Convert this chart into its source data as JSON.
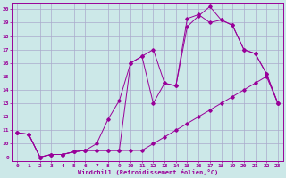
{
  "xlabel": "Windchill (Refroidissement éolien,°C)",
  "bg_color": "#cce8e8",
  "line_color": "#990099",
  "grid_color": "#aaaacc",
  "yticks": [
    9,
    10,
    11,
    12,
    13,
    14,
    15,
    16,
    17,
    18,
    19,
    20
  ],
  "xticks": [
    0,
    1,
    2,
    3,
    4,
    5,
    6,
    7,
    8,
    9,
    10,
    11,
    12,
    13,
    14,
    15,
    16,
    17,
    18,
    19,
    20,
    21,
    22,
    23
  ],
  "line1_x": [
    0,
    1,
    2,
    3,
    4,
    5,
    6,
    7,
    8,
    9,
    10,
    11,
    12,
    13,
    14,
    15,
    16,
    17,
    18,
    19,
    20,
    21,
    22,
    23
  ],
  "line1_y": [
    10.8,
    10.7,
    9.0,
    9.2,
    9.2,
    9.4,
    9.5,
    9.5,
    9.5,
    9.5,
    9.5,
    9.5,
    10.0,
    10.5,
    11.0,
    11.5,
    12.0,
    12.5,
    13.0,
    13.5,
    14.0,
    14.5,
    15.0,
    13.0
  ],
  "line2_x": [
    0,
    1,
    2,
    3,
    4,
    5,
    6,
    7,
    8,
    9,
    10,
    11,
    12,
    13,
    14,
    15,
    16,
    17,
    18,
    19,
    20,
    21,
    22,
    23
  ],
  "line2_y": [
    10.8,
    10.7,
    9.0,
    9.2,
    9.2,
    9.4,
    9.5,
    10.0,
    11.8,
    13.2,
    16.0,
    16.5,
    17.0,
    14.5,
    14.3,
    18.7,
    19.5,
    20.2,
    19.2,
    18.8,
    17.0,
    16.7,
    15.2,
    13.0
  ],
  "line3_x": [
    0,
    1,
    2,
    3,
    4,
    5,
    6,
    7,
    8,
    9,
    10,
    11,
    12,
    13,
    14,
    15,
    16,
    17,
    18,
    19,
    20,
    21,
    22,
    23
  ],
  "line3_y": [
    10.8,
    10.7,
    9.0,
    9.2,
    9.2,
    9.4,
    9.5,
    9.5,
    9.5,
    9.5,
    16.0,
    16.5,
    13.0,
    14.5,
    14.3,
    19.3,
    19.6,
    19.0,
    19.2,
    18.8,
    17.0,
    16.7,
    15.2,
    13.0
  ],
  "figsize": [
    3.2,
    2.0
  ],
  "dpi": 100
}
